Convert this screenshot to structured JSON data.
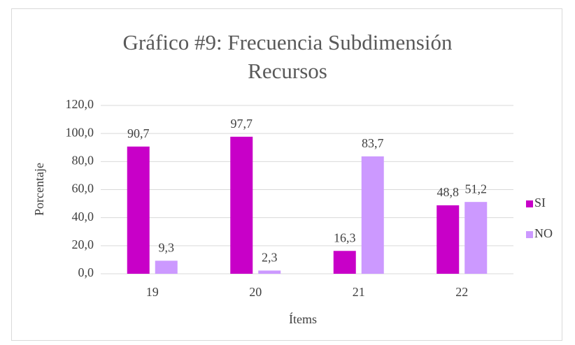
{
  "chart_data": {
    "type": "bar",
    "title": "Gráfico #9: Frecuencia Subdimensión Recursos",
    "xlabel": "Ítems",
    "ylabel": "Porcentaje",
    "categories": [
      "19",
      "20",
      "21",
      "22"
    ],
    "series": [
      {
        "name": "SI",
        "color": "#c800c8",
        "values": [
          90.7,
          97.7,
          16.3,
          48.8
        ],
        "value_labels": [
          "90,7",
          "97,7",
          "16,3",
          "48,8"
        ]
      },
      {
        "name": "NO",
        "color": "#cc99ff",
        "values": [
          9.3,
          2.3,
          83.7,
          51.2
        ],
        "value_labels": [
          "9,3",
          "2,3",
          "83,7",
          "51,2"
        ]
      }
    ],
    "ylim": [
      0,
      120
    ],
    "yticks": [
      {
        "value": 0,
        "label": "0,0"
      },
      {
        "value": 20,
        "label": "20,0"
      },
      {
        "value": 40,
        "label": "40,0"
      },
      {
        "value": 60,
        "label": "60,0"
      },
      {
        "value": 80,
        "label": "80,0"
      },
      {
        "value": 100,
        "label": "100,0"
      },
      {
        "value": 120,
        "label": "120,0"
      }
    ],
    "grid": true,
    "legend": "right"
  }
}
